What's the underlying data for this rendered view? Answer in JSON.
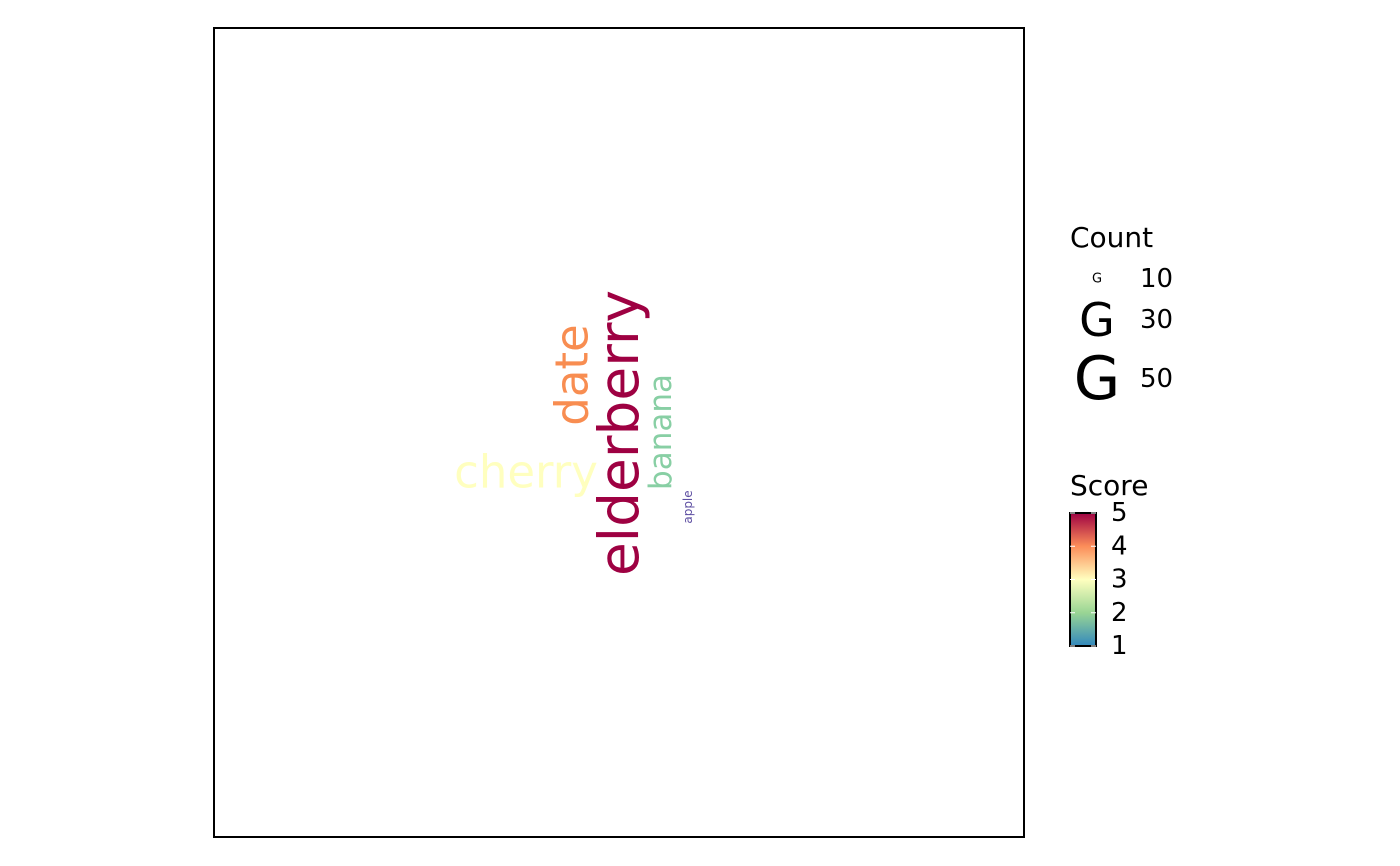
{
  "chart_data": {
    "type": "wordcloud",
    "words": [
      {
        "word": "apple",
        "count": 5,
        "score": 1
      },
      {
        "word": "banana",
        "count": 20,
        "score": 2
      },
      {
        "word": "cherry",
        "count": 30,
        "score": 3
      },
      {
        "word": "date",
        "count": 40,
        "score": 4
      },
      {
        "word": "elderberry",
        "count": 60,
        "score": 5
      }
    ],
    "size_legend": {
      "title": "Count",
      "glyph": "G",
      "breaks": [
        10,
        30,
        50
      ],
      "labels": [
        "10",
        "30",
        "50"
      ]
    },
    "color_legend": {
      "title": "Score",
      "limits": [
        1,
        5
      ],
      "breaks": [
        1,
        2,
        3,
        4,
        5
      ],
      "labels": [
        "1",
        "2",
        "3",
        "4",
        "5"
      ],
      "palette": [
        "#3288BD",
        "#99D594",
        "#FFFFBF",
        "#FC8D59",
        "#9E0142"
      ]
    },
    "word_colors": {
      "apple": "#5E4FA2",
      "banana": "#88CFA4",
      "cherry": "#FFFFBF",
      "date": "#F88D51",
      "elderberry": "#9E0142"
    },
    "panel_border": true,
    "grid": false
  }
}
